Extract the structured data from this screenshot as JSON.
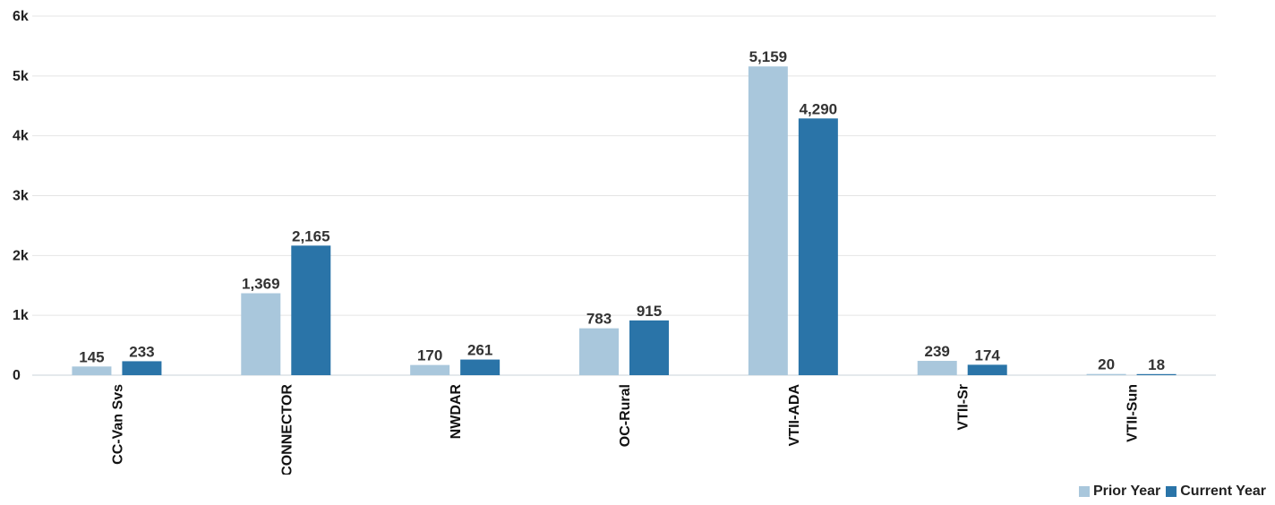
{
  "chart_data": {
    "type": "bar",
    "categories": [
      "CC-Van Svs",
      "CONNECTOR",
      "NWDAR",
      "OC-Rural",
      "VTII-ADA",
      "VTII-Sr",
      "VTII-Sun"
    ],
    "series": [
      {
        "name": "Prior Year",
        "values": [
          145,
          1369,
          170,
          783,
          5159,
          239,
          20
        ],
        "color": "#a9c7dc"
      },
      {
        "name": "Current Year",
        "values": [
          233,
          2165,
          261,
          915,
          4290,
          174,
          18
        ],
        "color": "#2a74a8"
      }
    ],
    "data_labels": [
      [
        "145",
        "1,369",
        "170",
        "783",
        "5,159",
        "239",
        "20"
      ],
      [
        "233",
        "2,165",
        "261",
        "915",
        "4,290",
        "174",
        "18"
      ]
    ],
    "y_ticks": [
      {
        "value": 0,
        "label": "0"
      },
      {
        "value": 1000,
        "label": "1k"
      },
      {
        "value": 2000,
        "label": "2k"
      },
      {
        "value": 3000,
        "label": "3k"
      },
      {
        "value": 4000,
        "label": "4k"
      },
      {
        "value": 5000,
        "label": "5k"
      },
      {
        "value": 6000,
        "label": "6k"
      }
    ],
    "ylim": [
      0,
      6000
    ],
    "grid": true,
    "legend_position": "bottom-right"
  },
  "legend": {
    "prior_label": "Prior Year",
    "current_label": "Current Year",
    "prior_color": "#a9c7dc",
    "current_color": "#2a74a8"
  }
}
